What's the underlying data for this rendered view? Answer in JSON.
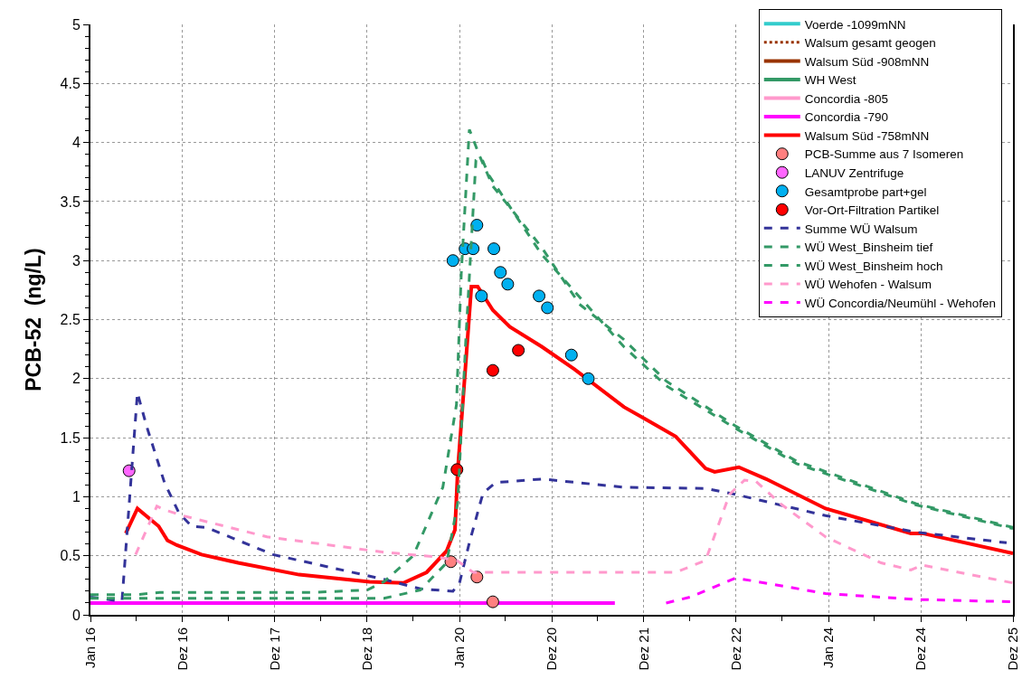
{
  "chart_data": {
    "type": "line",
    "ylabel": "PCB-52  (ng/L)",
    "grid": true,
    "legend": "top right",
    "xlim": [
      "2016-01-01",
      "2025-12-31"
    ],
    "xticks": [
      {
        "value": "2016-01-01",
        "label": "Jan 16"
      },
      {
        "value": "2016-07-01",
        "label": null
      },
      {
        "value": "2016-12-31",
        "label": "Dez 16"
      },
      {
        "value": "2017-07-01",
        "label": null
      },
      {
        "value": "2017-12-31",
        "label": "Dez 17"
      },
      {
        "value": "2018-07-01",
        "label": null
      },
      {
        "value": "2018-12-31",
        "label": "Dez 18"
      },
      {
        "value": "2019-07-01",
        "label": null
      },
      {
        "value": "2020-01-01",
        "label": "Jan 20"
      },
      {
        "value": "2020-07-01",
        "label": null
      },
      {
        "value": "2020-12-31",
        "label": "Dez 20"
      },
      {
        "value": "2021-07-01",
        "label": null
      },
      {
        "value": "2021-12-31",
        "label": "Dez 21"
      },
      {
        "value": "2022-07-01",
        "label": null
      },
      {
        "value": "2022-12-31",
        "label": "Dez 22"
      },
      {
        "value": "2023-07-01",
        "label": null
      },
      {
        "value": "2024-01-01",
        "label": "Jan 24"
      },
      {
        "value": "2024-07-01",
        "label": null
      },
      {
        "value": "2024-12-31",
        "label": "Dez 24"
      },
      {
        "value": "2025-07-01",
        "label": null
      },
      {
        "value": "2025-12-31",
        "label": "Dez 25"
      }
    ],
    "ylim": [
      0,
      5
    ],
    "yticks": [
      0,
      {
        "value": 0.1,
        "label": null
      },
      {
        "value": 0.2,
        "label": null
      },
      {
        "value": 0.3,
        "label": null
      },
      {
        "value": 0.4,
        "label": null
      },
      0.5,
      {
        "value": 0.6,
        "label": null
      },
      {
        "value": 0.7,
        "label": null
      },
      {
        "value": 0.8,
        "label": null
      },
      {
        "value": 0.9,
        "label": null
      },
      1,
      {
        "value": 1.1,
        "label": null
      },
      {
        "value": 1.2,
        "label": null
      },
      {
        "value": 1.3,
        "label": null
      },
      {
        "value": 1.4,
        "label": null
      },
      1.5,
      {
        "value": 1.6,
        "label": null
      },
      {
        "value": 1.7,
        "label": null
      },
      {
        "value": 1.8,
        "label": null
      },
      {
        "value": 1.9,
        "label": null
      },
      2,
      {
        "value": 2.1,
        "label": null
      },
      {
        "value": 2.2,
        "label": null
      },
      {
        "value": 2.3,
        "label": null
      },
      {
        "value": 2.4,
        "label": null
      },
      2.5,
      {
        "value": 2.6,
        "label": null
      },
      {
        "value": 2.7,
        "label": null
      },
      {
        "value": 2.8,
        "label": null
      },
      {
        "value": 2.9,
        "label": null
      },
      3,
      {
        "value": 3.1,
        "label": null
      },
      {
        "value": 3.2,
        "label": null
      },
      {
        "value": 3.3,
        "label": null
      },
      {
        "value": 3.4,
        "label": null
      },
      3.5,
      {
        "value": 3.6,
        "label": null
      },
      {
        "value": 3.7,
        "label": null
      },
      {
        "value": 3.8,
        "label": null
      },
      {
        "value": 3.9,
        "label": null
      },
      4,
      {
        "value": 4.1,
        "label": null
      },
      {
        "value": 4.2,
        "label": null
      },
      {
        "value": 4.3,
        "label": null
      },
      {
        "value": 4.4,
        "label": null
      },
      4.5,
      {
        "value": 4.6,
        "label": null
      },
      {
        "value": 4.7,
        "label": null
      },
      {
        "value": 4.8,
        "label": null
      },
      {
        "value": 4.9,
        "label": null
      },
      5
    ],
    "series": [
      {
        "name": "Voerde -1099mNN",
        "color": "#33cccc",
        "line_style": "solid"
      },
      {
        "name": "Walsum gesamt geogen",
        "color": "#993300",
        "line_style": "dotted"
      },
      {
        "name": "Walsum Süd -908mNN",
        "color": "#993300",
        "line_style": "solid"
      },
      {
        "name": "WH West",
        "color": "#339966",
        "line_style": "solid"
      },
      {
        "name": "Concordia -805",
        "color": "#ff99cc",
        "line_style": "solid"
      },
      {
        "name": "Concordia -790",
        "color": "#ff00ff",
        "line_style": "solid",
        "x": [
          "2016-01-01",
          "2021-09-07"
        ],
        "values": [
          0.1,
          0.1
        ]
      },
      {
        "name": "Walsum Süd -758mNN",
        "color": "#ff0000",
        "line_style": "solid",
        "x": [
          "2016-05-20",
          "2016-07-05",
          "2016-09-27",
          "2016-11-01",
          "2016-12-08",
          "2017-03-16",
          "2017-08-08",
          "2018-04-06",
          "2019-01-10",
          "2019-05-24",
          "2019-08-24",
          "2019-11-11",
          "2019-12-14",
          "2019-12-25",
          "2020-01-23",
          "2020-02-17",
          "2020-03-13",
          "2020-05-12",
          "2020-07-18",
          "2020-11-22",
          "2021-03-31",
          "2021-10-13",
          "2022-01-04",
          "2022-05-06",
          "2022-09-01",
          "2022-10-07",
          "2023-01-11",
          "2023-04-29",
          "2023-12-20",
          "2024-11-22",
          "2025-01-07",
          "2025-12-31"
        ],
        "values": [
          0.69,
          0.9,
          0.75,
          0.63,
          0.59,
          0.51,
          0.44,
          0.34,
          0.28,
          0.27,
          0.36,
          0.54,
          0.72,
          1.22,
          2.05,
          2.78,
          2.78,
          2.58,
          2.44,
          2.27,
          2.08,
          1.76,
          1.66,
          1.51,
          1.24,
          1.21,
          1.25,
          1.15,
          0.9,
          0.69,
          0.69,
          0.52
        ]
      },
      {
        "name": "PCB-Summe aus 7 Isomeren",
        "type": "scatter",
        "marker": "circle",
        "color": "#ff8080",
        "x": [
          "2019-11-28",
          "2020-03-10",
          "2020-05-12"
        ],
        "values": [
          0.45,
          0.32,
          0.11
        ]
      },
      {
        "name": "LANUV Zentrifuge",
        "type": "scatter",
        "marker": "circle",
        "color": "#ff66ff",
        "x": [
          "2016-06-02"
        ],
        "values": [
          1.22
        ]
      },
      {
        "name": "Gesamtprobe part+gel",
        "type": "scatter",
        "marker": "circle",
        "color": "#00b0f0",
        "x": [
          "2019-12-06",
          "2020-01-23",
          "2020-02-24",
          "2020-03-10",
          "2020-05-16",
          "2020-06-11",
          "2020-07-10",
          "2020-03-28",
          "2020-11-11",
          "2020-12-14",
          "2021-03-19",
          "2021-05-25"
        ],
        "values": [
          3.0,
          3.1,
          3.1,
          3.3,
          3.1,
          2.9,
          2.8,
          2.7,
          2.7,
          2.6,
          2.2,
          2.0
        ]
      },
      {
        "name": "Vor-Ort-Filtration Partikel",
        "type": "scatter",
        "marker": "circle",
        "color": "#ff0000",
        "x": [
          "2019-12-22",
          "2020-05-12",
          "2020-08-21"
        ],
        "values": [
          1.23,
          2.07,
          2.24
        ]
      },
      {
        "name": "Summe WÜ Walsum",
        "color": "#333399",
        "line_style": "dashed",
        "x": [
          "2016-01-01",
          "2016-04-17",
          "2016-05-05",
          "2016-07-05",
          "2016-08-10",
          "2016-10-20",
          "2016-12-17",
          "2017-02-05",
          "2017-04-04",
          "2017-12-24",
          "2019-03-08",
          "2019-07-30",
          "2019-12-06",
          "2020-01-01",
          "2020-02-09",
          "2020-04-03",
          "2020-05-23",
          "2020-11-22",
          "2021-10-13",
          "2022-09-01",
          "2022-12-28",
          "2023-12-20",
          "2024-12-13",
          "2025-12-06"
        ],
        "values": [
          0.15,
          0.12,
          0.12,
          1.88,
          1.6,
          1.12,
          0.86,
          0.75,
          0.74,
          0.51,
          0.3,
          0.22,
          0.2,
          0.27,
          0.61,
          1.03,
          1.12,
          1.15,
          1.08,
          1.07,
          1.02,
          0.84,
          0.7,
          0.61
        ]
      },
      {
        "name": "WÜ West_Binsheim tief",
        "color": "#339966",
        "line_style": "dashed",
        "x": [
          "2016-01-01",
          "2016-07-01",
          "2016-10-01",
          "2018-06-01",
          "2019-01-01",
          "2019-03-08",
          "2019-07-02",
          "2019-10-27",
          "2019-12-20",
          "2020-01-08",
          "2020-02-09",
          "2020-03-20",
          "2020-05-12",
          "2020-08-10",
          "2020-11-22",
          "2021-04-20",
          "2021-10-13",
          "2022-03-29",
          "2022-12-28",
          "2023-08-28",
          "2024-12-13",
          "2025-12-31"
        ],
        "values": [
          0.17,
          0.17,
          0.19,
          0.19,
          0.21,
          0.28,
          0.5,
          1.08,
          1.78,
          2.89,
          4.11,
          3.89,
          3.63,
          3.39,
          3.11,
          2.63,
          2.33,
          1.98,
          1.6,
          1.3,
          0.94,
          0.74
        ]
      },
      {
        "name": "WÜ West_Binsheim hoch",
        "color": "#339966",
        "line_style": "dashed",
        "x": [
          "2016-01-01",
          "2018-06-01",
          "2019-03-08",
          "2019-07-30",
          "2019-11-11",
          "2019-12-25",
          "2020-01-26",
          "2020-03-06",
          "2020-03-28",
          "2020-04-27",
          "2020-11-22",
          "2021-10-13",
          "2022-03-29",
          "2022-12-28",
          "2023-08-28",
          "2024-12-13",
          "2025-12-31"
        ],
        "values": [
          0.14,
          0.14,
          0.14,
          0.21,
          0.44,
          0.95,
          2.33,
          3.85,
          3.87,
          3.72,
          3.05,
          2.27,
          1.94,
          1.58,
          1.28,
          0.93,
          0.73
        ]
      },
      {
        "name": "WÜ Wehofen - Walsum",
        "color": "#ff99cc",
        "line_style": "dashed",
        "x": [
          "2016-06-28",
          "2016-09-20",
          "2016-10-20",
          "2016-12-31",
          "2017-11-30",
          "2019-03-08",
          "2019-10-03",
          "2019-12-22",
          "2020-02-24",
          "2021-09-07",
          "2022-05-06",
          "2022-09-01",
          "2022-12-05",
          "2023-02-02",
          "2023-03-20",
          "2023-06-25",
          "2023-12-20",
          "2024-07-27",
          "2024-11-22",
          "2025-01-07",
          "2025-12-31"
        ],
        "values": [
          0.51,
          0.92,
          0.89,
          0.84,
          0.66,
          0.53,
          0.49,
          0.46,
          0.36,
          0.36,
          0.36,
          0.46,
          1.02,
          1.14,
          1.13,
          0.94,
          0.66,
          0.44,
          0.38,
          0.42,
          0.27
        ]
      },
      {
        "name": "WÜ Concordia/Neumühl - Wehofen",
        "color": "#ff00ff",
        "line_style": "dashed",
        "x": [
          "2022-03-29",
          "2022-07-02",
          "2022-12-28",
          "2023-02-28",
          "2023-12-20",
          "2024-12-13",
          "2025-12-31"
        ],
        "values": [
          0.1,
          0.15,
          0.31,
          0.29,
          0.18,
          0.13,
          0.11
        ]
      }
    ]
  }
}
